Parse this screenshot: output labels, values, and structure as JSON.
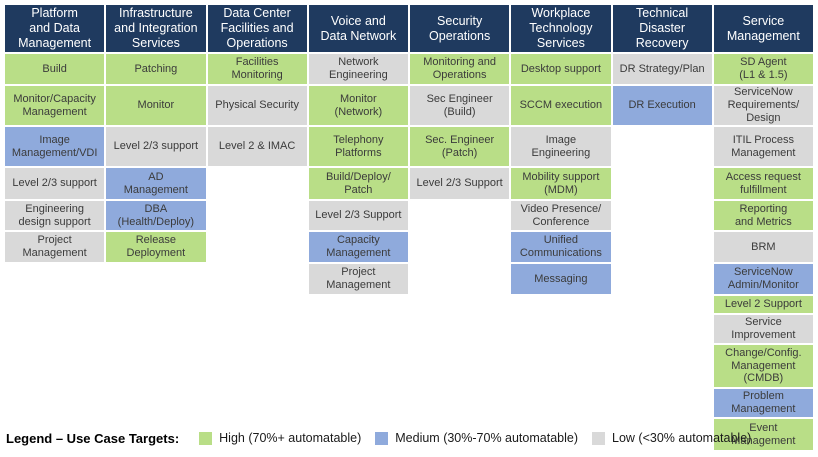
{
  "colors": {
    "high": "#B9DE87",
    "medium": "#8FAADC",
    "low": "#D9D9D9",
    "header_bg": "#1F3A5F",
    "header_text": "#FFFFFF",
    "cell_text": "#3B3B3B"
  },
  "columns": [
    {
      "header": "Platform\nand Data\nManagement",
      "cells": [
        {
          "label": "Build",
          "level": "high"
        },
        {
          "label": "Monitor/Capacity\nManagement",
          "level": "high"
        },
        {
          "label": "Image\nManagement/VDI",
          "level": "medium"
        },
        {
          "label": "Level 2/3 support",
          "level": "low"
        },
        {
          "label": "Engineering\ndesign support",
          "level": "low"
        },
        {
          "label": "Project\nManagement",
          "level": "low"
        }
      ]
    },
    {
      "header": "Infrastructure\nand Integration\nServices",
      "cells": [
        {
          "label": "Patching",
          "level": "high"
        },
        {
          "label": "Monitor",
          "level": "high"
        },
        {
          "label": "Level 2/3 support",
          "level": "low"
        },
        {
          "label": "AD\nManagement",
          "level": "medium"
        },
        {
          "label": "DBA\n(Health/Deploy)",
          "level": "medium"
        },
        {
          "label": "Release\nDeployment",
          "level": "high"
        }
      ]
    },
    {
      "header": "Data Center\nFacilities and\nOperations",
      "cells": [
        {
          "label": "Facilities\nMonitoring",
          "level": "high"
        },
        {
          "label": "Physical Security",
          "level": "low"
        },
        {
          "label": "Level 2 & IMAC",
          "level": "low"
        }
      ]
    },
    {
      "header": "Voice and\nData Network",
      "cells": [
        {
          "label": "Network\nEngineering",
          "level": "low"
        },
        {
          "label": "Monitor\n(Network)",
          "level": "high"
        },
        {
          "label": "Telephony\nPlatforms",
          "level": "high"
        },
        {
          "label": "Build/Deploy/\nPatch",
          "level": "high"
        },
        {
          "label": "Level 2/3 Support",
          "level": "low"
        },
        {
          "label": "Capacity\nManagement",
          "level": "medium"
        },
        {
          "label": "Project\nManagement",
          "level": "low"
        }
      ]
    },
    {
      "header": "Security\nOperations",
      "cells": [
        {
          "label": "Monitoring and\nOperations",
          "level": "high"
        },
        {
          "label": "Sec Engineer\n(Build)",
          "level": "low"
        },
        {
          "label": "Sec. Engineer\n(Patch)",
          "level": "high"
        },
        {
          "label": "Level 2/3 Support",
          "level": "low"
        }
      ]
    },
    {
      "header": "Workplace\nTechnology\nServices",
      "cells": [
        {
          "label": "Desktop support",
          "level": "high"
        },
        {
          "label": "SCCM execution",
          "level": "high"
        },
        {
          "label": "Image\nEngineering",
          "level": "low"
        },
        {
          "label": "Mobility support\n(MDM)",
          "level": "high"
        },
        {
          "label": "Video Presence/\nConference",
          "level": "low"
        },
        {
          "label": "Unified\nCommunications",
          "level": "medium"
        },
        {
          "label": "Messaging",
          "level": "medium"
        }
      ]
    },
    {
      "header": "Technical\nDisaster\nRecovery",
      "cells": [
        {
          "label": "DR Strategy/Plan",
          "level": "low"
        },
        {
          "label": "DR Execution",
          "level": "medium"
        }
      ]
    },
    {
      "header": "Service\nManagement",
      "cells": [
        {
          "label": "SD Agent\n(L1 & 1.5)",
          "level": "high"
        },
        {
          "label": "ServiceNow\nRequirements/\nDesign",
          "level": "low"
        },
        {
          "label": "ITIL Process\nManagement",
          "level": "low"
        },
        {
          "label": "Access request\nfulfillment",
          "level": "high"
        },
        {
          "label": "Reporting\nand Metrics",
          "level": "high"
        },
        {
          "label": "BRM",
          "level": "low"
        },
        {
          "label": "ServiceNow\nAdmin/Monitor",
          "level": "medium"
        },
        {
          "label": "Level 2 Support",
          "level": "high"
        },
        {
          "label": "Service\nImprovement",
          "level": "low"
        },
        {
          "label": "Change/Config.\nManagement\n(CMDB)",
          "level": "high"
        },
        {
          "label": "Problem\nManagement",
          "level": "medium"
        },
        {
          "label": "Event\nManagement",
          "level": "high"
        }
      ]
    }
  ],
  "legend": {
    "title": "Legend – Use Case Targets:",
    "items": [
      {
        "label": "High (70%+ automatable)",
        "level": "high"
      },
      {
        "label": "Medium (30%-70% automatable)",
        "level": "medium"
      },
      {
        "label": "Low (<30% automatable)",
        "level": "low"
      }
    ]
  }
}
